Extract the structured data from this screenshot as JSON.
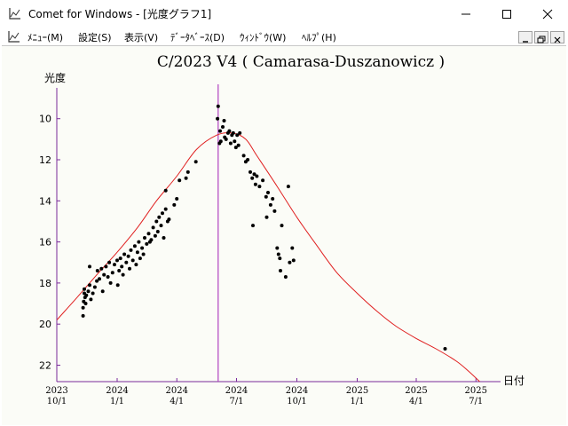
{
  "window": {
    "title": "Comet for Windows - [光度グラフ1]"
  },
  "menu": {
    "items": [
      "ﾒﾆｭｰ(M)",
      "設定(S)",
      "表示(V)",
      "ﾃﾞｰﾀﾍﾞｰｽ(D)",
      "ｳｨﾝﾄﾞｳ(W)",
      "ﾍﾙﾌﾟ(H)"
    ]
  },
  "colors": {
    "axis": "#7a2a9a",
    "curve": "#e02020",
    "marker_line": "#b040c0",
    "points": "#000000",
    "plot_bg": "#fbfcf7"
  },
  "icons": {
    "app": "graph-icon",
    "minimize": "minimize-icon",
    "maximize": "maximize-icon",
    "close": "close-icon"
  },
  "chart_data": {
    "type": "scatter",
    "title": "C/2023 V4 ( Camarasa-Duszanowicz )",
    "ylabel": "光度",
    "xlabel": "日付",
    "y_inverted": true,
    "ylim": [
      22.8,
      8.5
    ],
    "xlim": [
      "2023-10-01",
      "2025-07-25"
    ],
    "y_ticks": [
      10,
      12,
      14,
      16,
      18,
      20,
      22
    ],
    "x_ticks": [
      {
        "year": "2023",
        "md": "10/1",
        "date": "2023-10-01"
      },
      {
        "year": "2024",
        "md": "1/1",
        "date": "2024-01-01"
      },
      {
        "year": "2024",
        "md": "4/1",
        "date": "2024-04-01"
      },
      {
        "year": "2024",
        "md": "7/1",
        "date": "2024-07-01"
      },
      {
        "year": "2024",
        "md": "10/1",
        "date": "2024-10-01"
      },
      {
        "year": "2025",
        "md": "1/1",
        "date": "2025-01-01"
      },
      {
        "year": "2025",
        "md": "4/1",
        "date": "2025-04-01"
      },
      {
        "year": "2025",
        "md": "7/1",
        "date": "2025-07-01"
      }
    ],
    "perihelion_marker": "2024-06-03",
    "curve": [
      [
        "2023-10-01",
        19.8
      ],
      [
        "2023-11-01",
        18.7
      ],
      [
        "2023-12-01",
        17.6
      ],
      [
        "2024-01-01",
        16.5
      ],
      [
        "2024-02-01",
        15.3
      ],
      [
        "2024-03-01",
        14.0
      ],
      [
        "2024-04-01",
        12.8
      ],
      [
        "2024-05-01",
        11.5
      ],
      [
        "2024-06-01",
        10.8
      ],
      [
        "2024-06-25",
        10.7
      ],
      [
        "2024-07-15",
        11.0
      ],
      [
        "2024-08-01",
        11.8
      ],
      [
        "2024-09-01",
        13.3
      ],
      [
        "2024-10-01",
        14.8
      ],
      [
        "2024-11-01",
        16.2
      ],
      [
        "2024-12-01",
        17.5
      ],
      [
        "2025-01-01",
        18.5
      ],
      [
        "2025-02-01",
        19.4
      ],
      [
        "2025-03-01",
        20.1
      ],
      [
        "2025-04-01",
        20.7
      ],
      [
        "2025-05-01",
        21.2
      ],
      [
        "2025-06-01",
        21.8
      ],
      [
        "2025-06-20",
        22.3
      ],
      [
        "2025-07-10",
        22.9
      ]
    ],
    "observations": [
      [
        "2023-11-10",
        19.6
      ],
      [
        "2023-11-10",
        19.2
      ],
      [
        "2023-11-11",
        18.9
      ],
      [
        "2023-11-12",
        18.5
      ],
      [
        "2023-11-12",
        18.3
      ],
      [
        "2023-11-13",
        18.7
      ],
      [
        "2023-11-14",
        19.0
      ],
      [
        "2023-11-15",
        18.6
      ],
      [
        "2023-11-18",
        18.4
      ],
      [
        "2023-11-20",
        18.1
      ],
      [
        "2023-11-20",
        17.2
      ],
      [
        "2023-11-22",
        18.8
      ],
      [
        "2023-11-25",
        18.5
      ],
      [
        "2023-11-28",
        18.2
      ],
      [
        "2023-12-01",
        17.9
      ],
      [
        "2023-12-02",
        17.4
      ],
      [
        "2023-12-05",
        17.8
      ],
      [
        "2023-12-08",
        17.3
      ],
      [
        "2023-12-10",
        18.4
      ],
      [
        "2023-12-12",
        17.6
      ],
      [
        "2023-12-15",
        17.2
      ],
      [
        "2023-12-18",
        17.7
      ],
      [
        "2023-12-20",
        17.0
      ],
      [
        "2023-12-22",
        18.0
      ],
      [
        "2023-12-25",
        17.5
      ],
      [
        "2023-12-28",
        17.1
      ],
      [
        "2024-01-01",
        16.9
      ],
      [
        "2024-01-02",
        18.1
      ],
      [
        "2024-01-04",
        17.4
      ],
      [
        "2024-01-06",
        16.8
      ],
      [
        "2024-01-08",
        17.2
      ],
      [
        "2024-01-10",
        17.6
      ],
      [
        "2024-01-12",
        16.6
      ],
      [
        "2024-01-15",
        17.0
      ],
      [
        "2024-01-18",
        16.7
      ],
      [
        "2024-01-20",
        17.3
      ],
      [
        "2024-01-22",
        16.4
      ],
      [
        "2024-01-25",
        16.9
      ],
      [
        "2024-01-28",
        16.2
      ],
      [
        "2024-01-30",
        17.1
      ],
      [
        "2024-02-01",
        16.5
      ],
      [
        "2024-02-03",
        16.0
      ],
      [
        "2024-02-05",
        16.8
      ],
      [
        "2024-02-08",
        16.3
      ],
      [
        "2024-02-10",
        16.6
      ],
      [
        "2024-02-12",
        15.8
      ],
      [
        "2024-02-15",
        16.1
      ],
      [
        "2024-02-18",
        15.6
      ],
      [
        "2024-02-20",
        16.0
      ],
      [
        "2024-02-22",
        15.9
      ],
      [
        "2024-02-25",
        15.3
      ],
      [
        "2024-02-28",
        15.7
      ],
      [
        "2024-03-01",
        15.0
      ],
      [
        "2024-03-03",
        15.5
      ],
      [
        "2024-03-05",
        14.8
      ],
      [
        "2024-03-08",
        15.2
      ],
      [
        "2024-03-10",
        14.6
      ],
      [
        "2024-03-12",
        15.8
      ],
      [
        "2024-03-15",
        14.4
      ],
      [
        "2024-03-15",
        13.5
      ],
      [
        "2024-03-18",
        15.0
      ],
      [
        "2024-03-20",
        14.9
      ],
      [
        "2024-03-28",
        14.2
      ],
      [
        "2024-04-01",
        13.9
      ],
      [
        "2024-04-05",
        13.0
      ],
      [
        "2024-04-15",
        12.9
      ],
      [
        "2024-04-18",
        12.6
      ],
      [
        "2024-04-30",
        12.1
      ],
      [
        "2024-06-02",
        10.0
      ],
      [
        "2024-06-03",
        9.4
      ],
      [
        "2024-06-05",
        11.2
      ],
      [
        "2024-06-06",
        10.6
      ],
      [
        "2024-06-07",
        11.1
      ],
      [
        "2024-06-10",
        10.4
      ],
      [
        "2024-06-12",
        10.1
      ],
      [
        "2024-06-13",
        10.9
      ],
      [
        "2024-06-15",
        11.0
      ],
      [
        "2024-06-18",
        10.7
      ],
      [
        "2024-06-20",
        10.6
      ],
      [
        "2024-06-22",
        11.2
      ],
      [
        "2024-06-24",
        10.8
      ],
      [
        "2024-06-26",
        10.7
      ],
      [
        "2024-06-28",
        11.1
      ],
      [
        "2024-06-30",
        11.4
      ],
      [
        "2024-07-02",
        10.8
      ],
      [
        "2024-07-04",
        11.3
      ],
      [
        "2024-07-06",
        10.7
      ],
      [
        "2024-07-12",
        11.8
      ],
      [
        "2024-07-15",
        12.1
      ],
      [
        "2024-07-18",
        12.0
      ],
      [
        "2024-07-22",
        12.6
      ],
      [
        "2024-07-25",
        12.9
      ],
      [
        "2024-07-26",
        15.2
      ],
      [
        "2024-07-28",
        12.7
      ],
      [
        "2024-07-30",
        13.2
      ],
      [
        "2024-08-01",
        12.8
      ],
      [
        "2024-08-05",
        13.3
      ],
      [
        "2024-08-10",
        13.0
      ],
      [
        "2024-08-15",
        13.8
      ],
      [
        "2024-08-16",
        14.8
      ],
      [
        "2024-08-18",
        13.6
      ],
      [
        "2024-08-22",
        14.2
      ],
      [
        "2024-08-25",
        13.9
      ],
      [
        "2024-08-28",
        14.5
      ],
      [
        "2024-09-01",
        16.3
      ],
      [
        "2024-09-03",
        16.6
      ],
      [
        "2024-09-05",
        16.8
      ],
      [
        "2024-09-06",
        17.4
      ],
      [
        "2024-09-08",
        15.2
      ],
      [
        "2024-09-14",
        17.7
      ],
      [
        "2024-09-18",
        13.3
      ],
      [
        "2024-09-20",
        17.0
      ],
      [
        "2024-09-24",
        16.3
      ],
      [
        "2024-09-26",
        16.9
      ],
      [
        "2025-05-15",
        21.2
      ]
    ]
  }
}
